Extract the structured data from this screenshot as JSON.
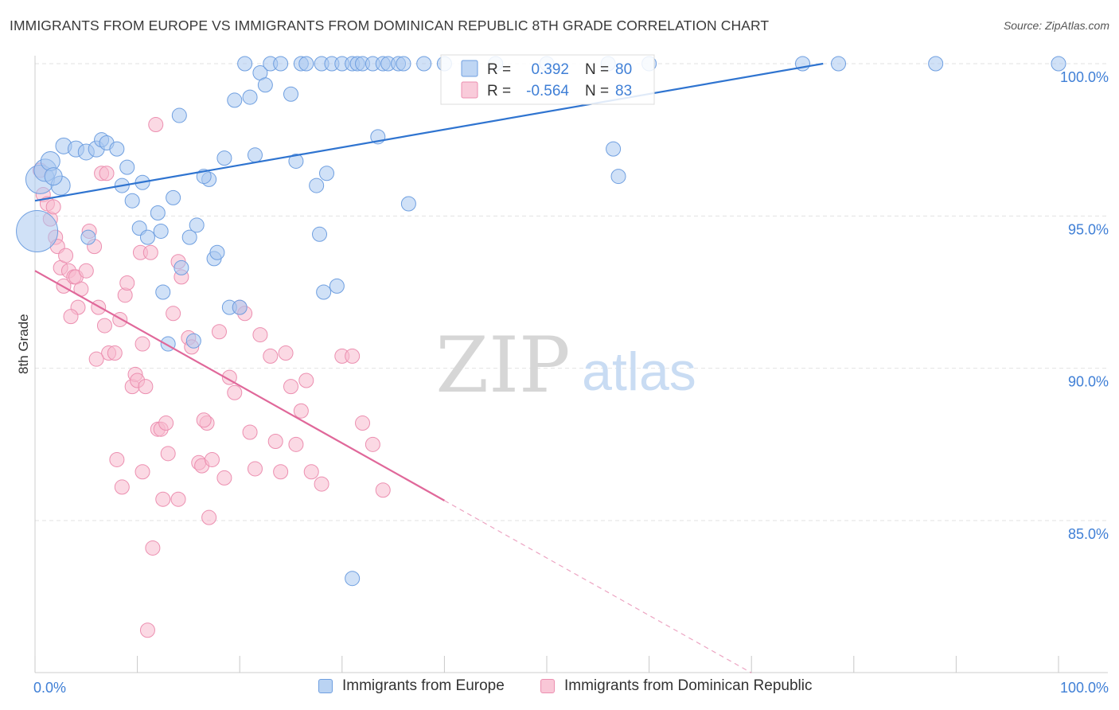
{
  "title": "IMMIGRANTS FROM EUROPE VS IMMIGRANTS FROM DOMINICAN REPUBLIC 8TH GRADE CORRELATION CHART",
  "source": "Source: ZipAtlas.com",
  "watermark": {
    "zip": "ZIP",
    "atlas": "atlas"
  },
  "colors": {
    "europe_fill": "#a9c8f0",
    "europe_stroke": "#6f9fe0",
    "europe_line": "#2f74d0",
    "dom_fill": "#f7b9cd",
    "dom_stroke": "#ec8fb0",
    "dom_line": "#e0689a",
    "axis_text": "#3f7fd6",
    "grid": "#e2e2e2"
  },
  "legend": {
    "r_label": "R =",
    "n_label": "N =",
    "europe": {
      "r": "0.392",
      "n": "80"
    },
    "dom": {
      "r": "-0.564",
      "n": "83"
    }
  },
  "bottom_legend": {
    "europe": "Immigrants from Europe",
    "dom": "Immigrants from Dominican Republic"
  },
  "chart_data": {
    "type": "scatter",
    "title": "IMMIGRANTS FROM EUROPE VS IMMIGRANTS FROM DOMINICAN REPUBLIC 8TH GRADE CORRELATION CHART",
    "xlabel": "",
    "ylabel": "8th Grade",
    "xlim": [
      0,
      100
    ],
    "ylim": [
      80,
      100.5
    ],
    "x_tick_labels": [
      "0.0%",
      "100.0%"
    ],
    "y_ticks": [
      85,
      90,
      95,
      100
    ],
    "y_tick_labels": [
      "85.0%",
      "90.0%",
      "95.0%",
      "100.0%"
    ],
    "grid": true,
    "legend_placement": "top-center",
    "series": [
      {
        "name": "Immigrants from Europe",
        "r": 0.392,
        "n": 80,
        "trend": {
          "x0": 0,
          "y0": 95.5,
          "x1": 77,
          "y1": 100,
          "solid_to": 77
        },
        "points": [
          [
            0.2,
            94.5,
            26
          ],
          [
            0.5,
            96.2,
            18
          ],
          [
            1,
            96.5,
            14
          ],
          [
            1.5,
            96.8,
            12
          ],
          [
            2.5,
            96.0,
            12
          ],
          [
            1.8,
            96.3,
            11
          ],
          [
            2.8,
            97.3,
            10
          ],
          [
            4,
            97.2,
            10
          ],
          [
            5,
            97.1,
            10
          ],
          [
            6,
            97.2,
            10
          ],
          [
            6.5,
            97.5,
            9
          ],
          [
            7,
            97.4,
            9
          ],
          [
            8,
            97.2,
            9
          ],
          [
            5.2,
            94.3,
            9
          ],
          [
            9,
            96.6,
            9
          ],
          [
            8.5,
            96.0,
            9
          ],
          [
            10.5,
            96.1,
            9
          ],
          [
            9.5,
            95.5,
            9
          ],
          [
            10.2,
            94.6,
            9
          ],
          [
            12,
            95.1,
            9
          ],
          [
            11,
            94.3,
            9
          ],
          [
            12.3,
            94.5,
            9
          ],
          [
            13.5,
            95.6,
            9
          ],
          [
            14.1,
            98.3,
            9
          ],
          [
            15.1,
            94.3,
            9
          ],
          [
            15.8,
            94.7,
            9
          ],
          [
            17,
            96.2,
            9
          ],
          [
            16.5,
            96.3,
            9
          ],
          [
            14.3,
            93.3,
            9
          ],
          [
            17.5,
            93.6,
            9
          ],
          [
            17.8,
            93.8,
            9
          ],
          [
            18.5,
            96.9,
            9
          ],
          [
            19,
            92.0,
            9
          ],
          [
            20,
            92.0,
            9
          ],
          [
            13,
            90.8,
            9
          ],
          [
            15.5,
            90.9,
            9
          ],
          [
            19.5,
            98.8,
            9
          ],
          [
            21,
            98.9,
            9
          ],
          [
            21.5,
            97.0,
            9
          ],
          [
            22,
            99.7,
            9
          ],
          [
            22.5,
            99.3,
            9
          ],
          [
            23,
            100,
            9
          ],
          [
            24,
            100,
            9
          ],
          [
            25,
            99.0,
            9
          ],
          [
            25.5,
            96.8,
            9
          ],
          [
            26,
            100,
            9
          ],
          [
            26.5,
            100,
            9
          ],
          [
            27.5,
            96.0,
            9
          ],
          [
            27.8,
            94.4,
            9
          ],
          [
            28,
            100,
            9
          ],
          [
            28.5,
            96.4,
            9
          ],
          [
            29,
            100,
            9
          ],
          [
            30,
            100,
            9
          ],
          [
            31,
            100,
            9
          ],
          [
            31.5,
            100,
            9
          ],
          [
            32,
            100,
            9
          ],
          [
            33,
            100,
            9
          ],
          [
            34,
            100,
            9
          ],
          [
            34.5,
            100,
            9
          ],
          [
            35.5,
            100,
            9
          ],
          [
            36,
            100,
            9
          ],
          [
            33.5,
            97.6,
            9
          ],
          [
            36.5,
            95.4,
            9
          ],
          [
            28.2,
            92.5,
            9
          ],
          [
            29.5,
            92.7,
            9
          ],
          [
            31,
            83.1,
            9
          ],
          [
            40,
            100,
            9
          ],
          [
            45,
            100,
            9
          ],
          [
            50,
            100,
            9
          ],
          [
            56,
            100,
            9
          ],
          [
            60,
            100,
            9
          ],
          [
            75,
            100,
            9
          ],
          [
            78.5,
            100,
            9
          ],
          [
            88,
            100,
            9
          ],
          [
            100,
            100,
            9
          ],
          [
            56.5,
            97.2,
            9
          ],
          [
            57,
            96.3,
            9
          ],
          [
            20.5,
            100,
            9
          ],
          [
            12.5,
            92.5,
            9
          ],
          [
            38,
            100,
            9
          ]
        ]
      },
      {
        "name": "Immigrants from Dominican Republic",
        "r": -0.564,
        "n": 83,
        "trend": {
          "x0": 0,
          "y0": 93.2,
          "x1": 70,
          "y1": 80,
          "solid_to": 40
        },
        "points": [
          [
            0.5,
            96.5,
            9
          ],
          [
            0.8,
            95.7,
            9
          ],
          [
            1.2,
            95.4,
            9
          ],
          [
            1.5,
            94.9,
            9
          ],
          [
            1.8,
            95.3,
            9
          ],
          [
            2.0,
            94.3,
            9
          ],
          [
            2.2,
            94.0,
            9
          ],
          [
            2.5,
            93.3,
            9
          ],
          [
            2.8,
            92.7,
            9
          ],
          [
            3.0,
            93.7,
            9
          ],
          [
            3.3,
            93.2,
            9
          ],
          [
            3.8,
            93.0,
            9
          ],
          [
            4.0,
            93.0,
            9
          ],
          [
            4.2,
            92.0,
            9
          ],
          [
            4.5,
            92.6,
            9
          ],
          [
            5.0,
            93.2,
            9
          ],
          [
            5.3,
            94.5,
            9
          ],
          [
            5.8,
            94.0,
            9
          ],
          [
            6.2,
            92.0,
            9
          ],
          [
            6.5,
            96.4,
            9
          ],
          [
            7.0,
            96.4,
            9
          ],
          [
            6.8,
            91.4,
            9
          ],
          [
            7.2,
            90.5,
            9
          ],
          [
            7.8,
            90.5,
            9
          ],
          [
            8.3,
            91.6,
            9
          ],
          [
            8.8,
            92.4,
            9
          ],
          [
            9.0,
            92.8,
            9
          ],
          [
            9.5,
            89.4,
            9
          ],
          [
            9.8,
            89.8,
            9
          ],
          [
            10.0,
            89.6,
            9
          ],
          [
            10.3,
            93.8,
            9
          ],
          [
            10.5,
            90.8,
            9
          ],
          [
            10.8,
            89.4,
            9
          ],
          [
            11.3,
            93.8,
            9
          ],
          [
            11.8,
            98.0,
            9
          ],
          [
            12.0,
            88.0,
            9
          ],
          [
            12.3,
            88.0,
            9
          ],
          [
            12.8,
            88.2,
            9
          ],
          [
            13.0,
            87.2,
            9
          ],
          [
            13.5,
            91.8,
            9
          ],
          [
            14.0,
            93.5,
            9
          ],
          [
            14.3,
            93.0,
            9
          ],
          [
            15.0,
            91.0,
            9
          ],
          [
            15.3,
            90.7,
            9
          ],
          [
            16.0,
            86.9,
            9
          ],
          [
            16.3,
            86.8,
            9
          ],
          [
            16.8,
            88.2,
            9
          ],
          [
            17.0,
            85.1,
            9
          ],
          [
            17.3,
            87.0,
            9
          ],
          [
            18.0,
            91.2,
            9
          ],
          [
            18.5,
            86.4,
            9
          ],
          [
            19.0,
            89.7,
            9
          ],
          [
            19.5,
            89.2,
            9
          ],
          [
            20.0,
            92.0,
            9
          ],
          [
            20.5,
            91.8,
            9
          ],
          [
            21.0,
            87.9,
            9
          ],
          [
            21.5,
            86.7,
            9
          ],
          [
            22.0,
            91.1,
            9
          ],
          [
            23.0,
            90.4,
            9
          ],
          [
            23.5,
            87.6,
            9
          ],
          [
            24.0,
            86.6,
            9
          ],
          [
            24.5,
            90.5,
            9
          ],
          [
            25.0,
            89.4,
            9
          ],
          [
            25.5,
            87.5,
            9
          ],
          [
            26.0,
            88.6,
            9
          ],
          [
            26.5,
            89.6,
            9
          ],
          [
            27.0,
            86.6,
            9
          ],
          [
            28.0,
            86.2,
            9
          ],
          [
            30.0,
            90.4,
            9
          ],
          [
            31.0,
            90.4,
            9
          ],
          [
            32.0,
            88.2,
            9
          ],
          [
            33.0,
            87.5,
            9
          ],
          [
            34.0,
            86.0,
            9
          ],
          [
            8.0,
            87.0,
            9
          ],
          [
            8.5,
            86.1,
            9
          ],
          [
            10.5,
            86.6,
            9
          ],
          [
            12.5,
            85.7,
            9
          ],
          [
            14.0,
            85.7,
            9
          ],
          [
            11.5,
            84.1,
            9
          ],
          [
            11.0,
            81.4,
            9
          ],
          [
            3.5,
            91.7,
            9
          ],
          [
            6.0,
            90.3,
            9
          ],
          [
            16.5,
            88.3,
            9
          ]
        ]
      }
    ]
  }
}
